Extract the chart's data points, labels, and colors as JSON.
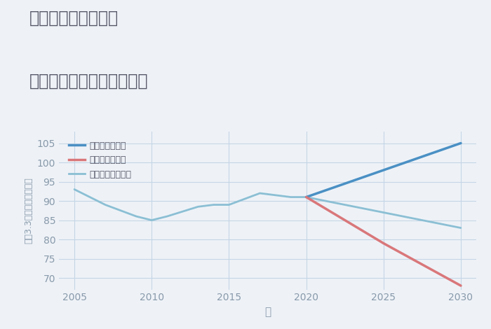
{
  "title_line1": "三重県伊賀市真泥の",
  "title_line2": "中古マンションの価格推移",
  "xlabel": "年",
  "ylabel": "坪（3.3㎡）単価（万円）",
  "background_color": "#eef2f7",
  "plot_background": "#eef2f7",
  "good_scenario": {
    "label": "グッドシナリオ",
    "color": "#4a90c4",
    "years": [
      2020,
      2025,
      2030
    ],
    "values": [
      91,
      98,
      105
    ]
  },
  "bad_scenario": {
    "label": "バッドシナリオ",
    "color": "#d9777a",
    "years": [
      2020,
      2025,
      2030
    ],
    "values": [
      91,
      79,
      68
    ]
  },
  "normal_scenario": {
    "label": "ノーマルシナリオ",
    "color": "#8bbfd4",
    "years": [
      2005,
      2007,
      2009,
      2010,
      2011,
      2013,
      2014,
      2015,
      2017,
      2018,
      2019,
      2020,
      2025,
      2030
    ],
    "values": [
      93,
      89,
      86,
      85,
      86,
      88.5,
      89,
      89,
      92,
      91.5,
      91,
      91,
      87,
      83
    ]
  },
  "ylim": [
    67,
    108
  ],
  "yticks": [
    70,
    75,
    80,
    85,
    90,
    95,
    100,
    105
  ],
  "xlim": [
    2004,
    2031
  ],
  "xticks": [
    2005,
    2010,
    2015,
    2020,
    2025,
    2030
  ],
  "grid_color": "#c5d5e5",
  "title_color": "#555566",
  "axis_color": "#8899aa",
  "tick_color": "#8899aa",
  "legend_text_color": "#555566"
}
